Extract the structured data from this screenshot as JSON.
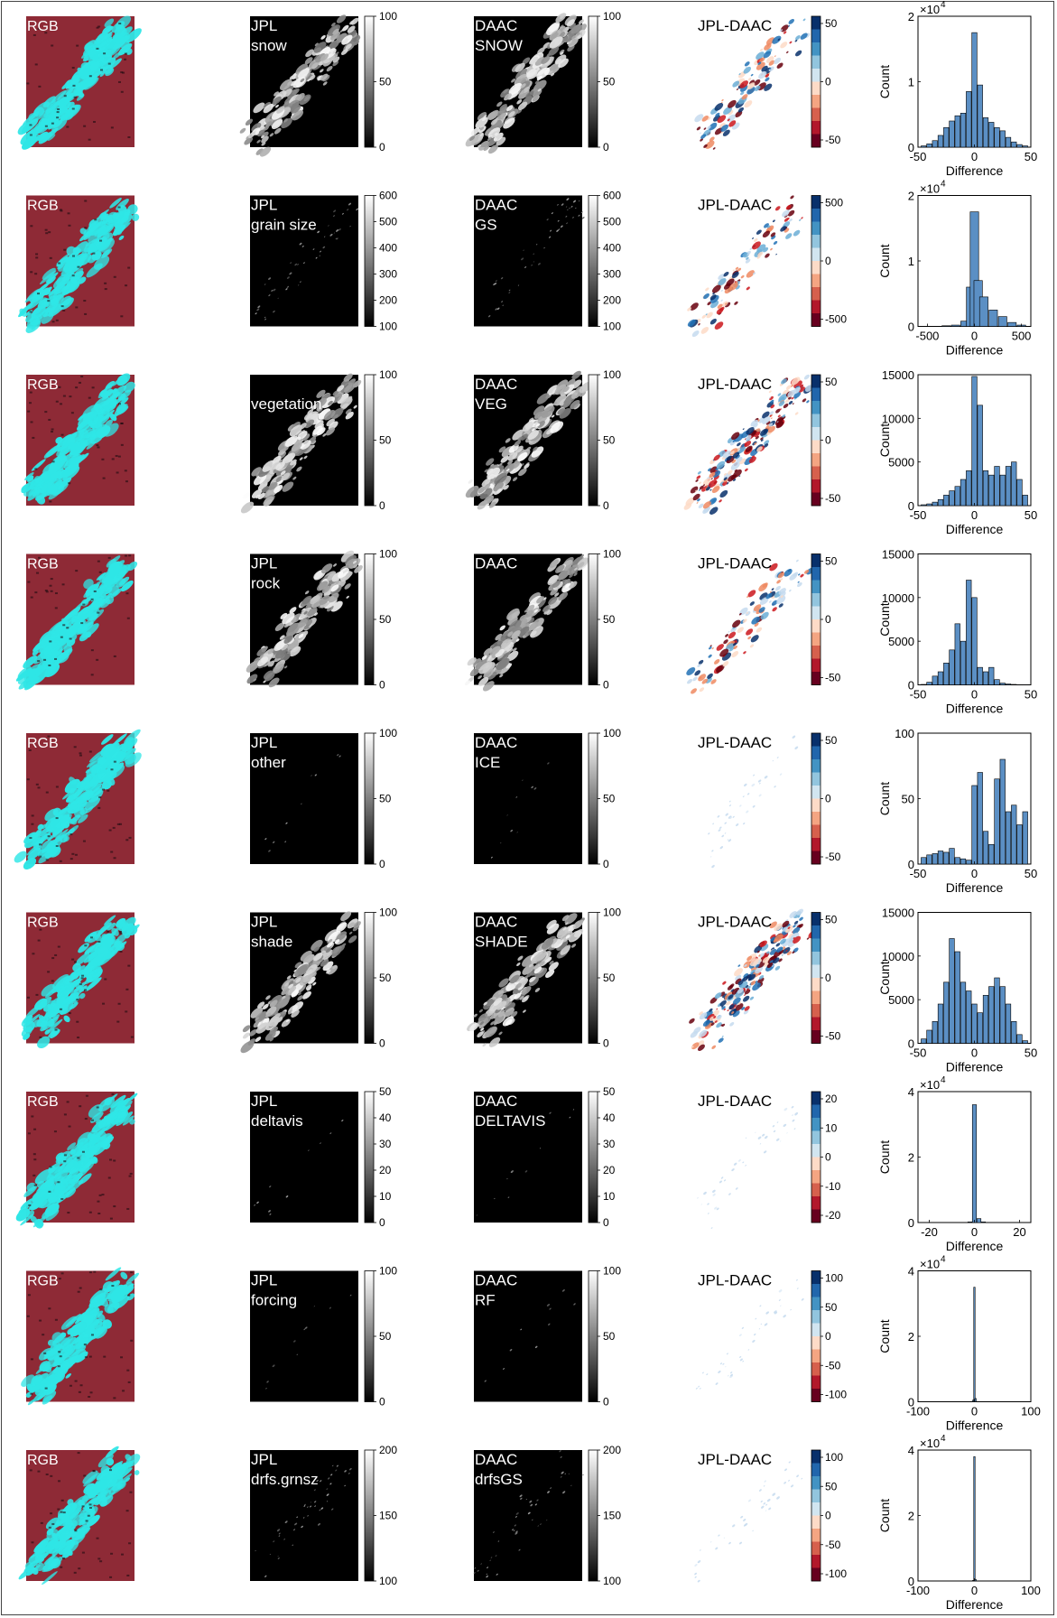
{
  "colors": {
    "rgb_land": "#8e2a36",
    "rgb_snow": "#2fe6e6",
    "diff_positive": "#08306b",
    "diff_negative": "#67000d",
    "hist_bar": "#5b8fc4"
  },
  "chart_data": [
    {
      "type": "heatmap",
      "rgb_label": "RGB",
      "jpl_label": [
        "JPL",
        "snow"
      ],
      "daac_label": [
        "DAAC",
        "SNOW"
      ],
      "gray_ticks": [
        "100",
        "50",
        "0"
      ],
      "diff_label": "JPL-DAAC",
      "diff_ticks": [
        "50",
        "0",
        "-50"
      ],
      "hist": {
        "type": "bar",
        "xlabel": "Difference",
        "ylabel": "Count",
        "multiplier": "×10",
        "exponent": "4",
        "xticks": [
          "-50",
          "0",
          "50"
        ],
        "yticks": [
          "2",
          "1",
          "0"
        ],
        "xlim": [
          -50,
          50
        ],
        "ylim": [
          0,
          2
        ],
        "x": [
          -45,
          -40,
          -35,
          -30,
          -25,
          -20,
          -15,
          -10,
          -5,
          0,
          5,
          10,
          15,
          20,
          25,
          30,
          35,
          40,
          45
        ],
        "values": [
          0.02,
          0.05,
          0.1,
          0.18,
          0.3,
          0.4,
          0.48,
          0.52,
          0.85,
          1.75,
          0.95,
          0.45,
          0.38,
          0.3,
          0.25,
          0.15,
          0.08,
          0.04,
          0.02
        ]
      }
    },
    {
      "type": "heatmap",
      "rgb_label": "RGB",
      "jpl_label": [
        "JPL",
        "grain size"
      ],
      "daac_label": [
        "DAAC",
        "GS"
      ],
      "gray_ticks": [
        "600",
        "500",
        "400",
        "300",
        "200",
        "100"
      ],
      "diff_label": "JPL-DAAC",
      "diff_ticks": [
        "500",
        "0",
        "-500"
      ],
      "hist": {
        "type": "bar",
        "xlabel": "Difference",
        "ylabel": "Count",
        "multiplier": "×10",
        "exponent": "4",
        "xticks": [
          "-500",
          "0",
          "500"
        ],
        "yticks": [
          "2",
          "1",
          "0"
        ],
        "xlim": [
          -600,
          600
        ],
        "ylim": [
          0,
          2
        ],
        "x": [
          -500,
          -400,
          -300,
          -200,
          -100,
          -40,
          0,
          40,
          100,
          200,
          300,
          400,
          500
        ],
        "values": [
          0.0,
          0.0,
          0.01,
          0.02,
          0.08,
          0.6,
          1.75,
          0.7,
          0.45,
          0.25,
          0.15,
          0.06,
          0.02
        ]
      }
    },
    {
      "type": "heatmap",
      "rgb_label": "RGB",
      "jpl_label": [
        "",
        "vegetation"
      ],
      "daac_label": [
        "DAAC",
        "VEG"
      ],
      "gray_ticks": [
        "100",
        "50",
        "0"
      ],
      "diff_label": "JPL-DAAC",
      "diff_ticks": [
        "50",
        "0",
        "-50"
      ],
      "hist": {
        "type": "bar",
        "xlabel": "Difference",
        "ylabel": "Count",
        "multiplier": "",
        "exponent": "",
        "xticks": [
          "-50",
          "0",
          "50"
        ],
        "yticks": [
          "15000",
          "10000",
          "5000",
          "0"
        ],
        "xlim": [
          -50,
          50
        ],
        "ylim": [
          0,
          15000
        ],
        "x": [
          -45,
          -40,
          -35,
          -30,
          -25,
          -20,
          -15,
          -10,
          -5,
          0,
          5,
          10,
          15,
          20,
          25,
          30,
          35,
          40,
          45
        ],
        "values": [
          100,
          200,
          400,
          700,
          1200,
          1700,
          2200,
          3000,
          4000,
          14800,
          11500,
          4000,
          3500,
          4500,
          3500,
          4500,
          5000,
          3000,
          1200
        ]
      }
    },
    {
      "type": "heatmap",
      "rgb_label": "RGB",
      "jpl_label": [
        "JPL",
        "rock"
      ],
      "daac_label": [
        "DAAC",
        ""
      ],
      "gray_ticks": [
        "100",
        "50",
        "0"
      ],
      "diff_label": "JPL-DAAC",
      "diff_ticks": [
        "50",
        "0",
        "-50"
      ],
      "hist": {
        "type": "bar",
        "xlabel": "Difference",
        "ylabel": "Count",
        "multiplier": "",
        "exponent": "",
        "xticks": [
          "-50",
          "0",
          "50"
        ],
        "yticks": [
          "15000",
          "10000",
          "5000",
          "0"
        ],
        "xlim": [
          -50,
          50
        ],
        "ylim": [
          0,
          15000
        ],
        "x": [
          -45,
          -40,
          -35,
          -30,
          -25,
          -20,
          -15,
          -10,
          -5,
          0,
          5,
          10,
          15,
          20,
          25,
          30,
          35,
          40,
          45
        ],
        "values": [
          50,
          300,
          1000,
          1500,
          2500,
          4000,
          7000,
          5000,
          12000,
          10000,
          2000,
          1500,
          2000,
          600,
          200,
          100,
          50,
          20,
          10
        ]
      }
    },
    {
      "type": "heatmap",
      "rgb_label": "RGB",
      "jpl_label": [
        "JPL",
        "other"
      ],
      "daac_label": [
        "DAAC",
        "ICE"
      ],
      "gray_ticks": [
        "100",
        "50",
        "0"
      ],
      "diff_label": "JPL-DAAC",
      "diff_ticks": [
        "50",
        "0",
        "-50"
      ],
      "hist": {
        "type": "bar",
        "xlabel": "Difference",
        "ylabel": "Count",
        "multiplier": "",
        "exponent": "",
        "xticks": [
          "-50",
          "0",
          "50"
        ],
        "yticks": [
          "100",
          "50",
          "0"
        ],
        "xlim": [
          -50,
          50
        ],
        "ylim": [
          0,
          100
        ],
        "x": [
          -45,
          -40,
          -35,
          -30,
          -25,
          -20,
          -15,
          -10,
          -5,
          0,
          5,
          10,
          15,
          20,
          25,
          30,
          35,
          40,
          45
        ],
        "values": [
          5,
          7,
          8,
          10,
          9,
          12,
          5,
          4,
          3,
          60,
          70,
          25,
          15,
          65,
          80,
          40,
          45,
          30,
          40
        ]
      }
    },
    {
      "type": "heatmap",
      "rgb_label": "RGB",
      "jpl_label": [
        "JPL",
        "shade"
      ],
      "daac_label": [
        "DAAC",
        "SHADE"
      ],
      "gray_ticks": [
        "100",
        "50",
        "0"
      ],
      "diff_label": "JPL-DAAC",
      "diff_ticks": [
        "50",
        "0",
        "-50"
      ],
      "hist": {
        "type": "bar",
        "xlabel": "Difference",
        "ylabel": "Count",
        "multiplier": "",
        "exponent": "",
        "xticks": [
          "-50",
          "0",
          "50"
        ],
        "yticks": [
          "15000",
          "10000",
          "5000",
          "0"
        ],
        "xlim": [
          -50,
          50
        ],
        "ylim": [
          0,
          15000
        ],
        "x": [
          -45,
          -40,
          -35,
          -30,
          -25,
          -20,
          -15,
          -10,
          -5,
          0,
          5,
          10,
          15,
          20,
          25,
          30,
          35,
          40,
          45
        ],
        "values": [
          500,
          1500,
          2500,
          4500,
          7000,
          12000,
          10500,
          7000,
          6000,
          4500,
          3500,
          5500,
          6500,
          7500,
          6500,
          4500,
          2500,
          1000,
          300
        ]
      }
    },
    {
      "type": "heatmap",
      "rgb_label": "RGB",
      "jpl_label": [
        "JPL",
        "deltavis"
      ],
      "daac_label": [
        "DAAC",
        "DELTAVIS"
      ],
      "gray_ticks": [
        "50",
        "40",
        "30",
        "20",
        "10",
        "0"
      ],
      "diff_label": "JPL-DAAC",
      "diff_ticks": [
        "20",
        "10",
        "0",
        "-10",
        "-20"
      ],
      "hist": {
        "type": "bar",
        "xlabel": "Difference",
        "ylabel": "Count",
        "multiplier": "×10",
        "exponent": "4",
        "xticks": [
          "-20",
          "0",
          "20"
        ],
        "yticks": [
          "4",
          "2",
          "0"
        ],
        "xlim": [
          -25,
          25
        ],
        "ylim": [
          0,
          4
        ],
        "x": [
          -2,
          0,
          2,
          4
        ],
        "values": [
          0.02,
          3.6,
          0.12,
          0.02
        ]
      }
    },
    {
      "type": "heatmap",
      "rgb_label": "RGB",
      "jpl_label": [
        "JPL",
        "forcing"
      ],
      "daac_label": [
        "DAAC",
        "RF"
      ],
      "gray_ticks": [
        "100",
        "50",
        "0"
      ],
      "diff_label": "JPL-DAAC",
      "diff_ticks": [
        "100",
        "50",
        "0",
        "-50",
        "-100"
      ],
      "hist": {
        "type": "bar",
        "xlabel": "Difference",
        "ylabel": "Count",
        "multiplier": "×10",
        "exponent": "4",
        "xticks": [
          "-100",
          "0",
          "100"
        ],
        "yticks": [
          "4",
          "2",
          "0"
        ],
        "xlim": [
          -100,
          100
        ],
        "ylim": [
          0,
          4
        ],
        "x": [
          -2,
          0,
          2
        ],
        "values": [
          0.05,
          3.5,
          0.1
        ]
      }
    },
    {
      "type": "heatmap",
      "rgb_label": "RGB",
      "jpl_label": [
        "JPL",
        "drfs.grnsz"
      ],
      "daac_label": [
        "DAAC",
        "drfsGS"
      ],
      "gray_ticks": [
        "200",
        "150",
        "100"
      ],
      "diff_label": "JPL-DAAC",
      "diff_ticks": [
        "100",
        "50",
        "0",
        "-50",
        "-100"
      ],
      "hist": {
        "type": "bar",
        "xlabel": "Difference",
        "ylabel": "Count",
        "multiplier": "×10",
        "exponent": "4",
        "xticks": [
          "-100",
          "0",
          "100"
        ],
        "yticks": [
          "4",
          "2",
          "0"
        ],
        "xlim": [
          -100,
          100
        ],
        "ylim": [
          0,
          4
        ],
        "x": [
          -2,
          0,
          2
        ],
        "values": [
          0.02,
          3.8,
          0.05
        ]
      }
    }
  ]
}
